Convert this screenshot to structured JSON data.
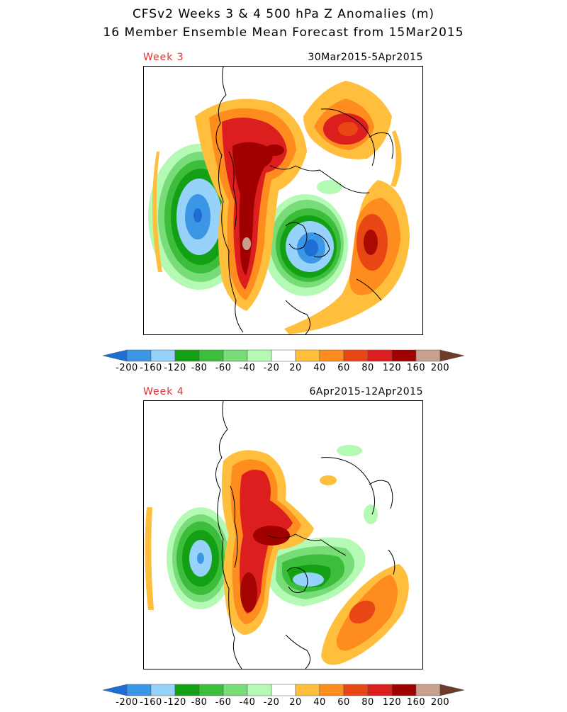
{
  "header": {
    "title_line1": "CFSv2 Weeks 3 & 4 500 hPa Z Anomalies (m)",
    "title_line2": "16 Member Ensemble Mean Forecast from 15Mar2015"
  },
  "panels": [
    {
      "label": "Week 3",
      "dates": "30Mar2015-5Apr2015"
    },
    {
      "label": "Week 4",
      "dates": "6Apr2015-12Apr2015"
    }
  ],
  "colorbar": {
    "labels": [
      "-200",
      "-160",
      "-120",
      "-80",
      "-60",
      "-40",
      "-20",
      "20",
      "40",
      "60",
      "80",
      "120",
      "160",
      "200"
    ],
    "colors": {
      "lt_-200": "#1e6ed6",
      "-200_-160": "#3c96e6",
      "-160_-120": "#96d2fa",
      "-120_-80": "#14a014",
      "-80_-60": "#3cbe3c",
      "-60_-40": "#78dc78",
      "-40_-20": "#b4fab4",
      "-20_20": "#ffffff",
      "20_40": "#ffbe3c",
      "40_60": "#ff8c1e",
      "60_80": "#e84614",
      "80_120": "#dc1e1e",
      "120_160": "#a00000",
      "160_200": "#c8a090",
      "gt_200": "#a07060",
      "max": "#6e3c28"
    }
  }
}
